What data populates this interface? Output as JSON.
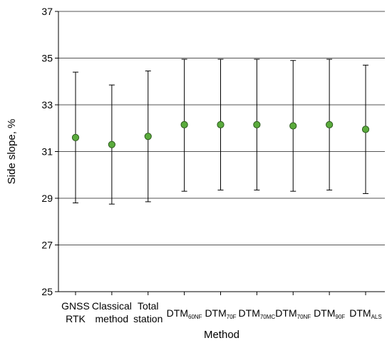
{
  "chart_data": {
    "type": "scatter",
    "subtype": "errorbar",
    "title": "",
    "xlabel": "Method",
    "ylabel": "Side slope, %",
    "ylim": [
      25,
      37
    ],
    "yticks": [
      25,
      27,
      29,
      31,
      33,
      35,
      37
    ],
    "grid": "horizontal",
    "marker_color": "#5aab3c",
    "marker_edge_color": "#2d5a1e",
    "categories": [
      {
        "lines": [
          "GNSS",
          "RTK"
        ]
      },
      {
        "lines": [
          "Classical",
          "method"
        ]
      },
      {
        "lines": [
          "Total",
          "station"
        ]
      },
      {
        "base": "DTM",
        "sub": "60NF"
      },
      {
        "base": "DTM",
        "sub": "70F"
      },
      {
        "base": "DTM",
        "sub": "70MC"
      },
      {
        "base": "DTM",
        "sub": "70NF"
      },
      {
        "base": "DTM",
        "sub": "90F"
      },
      {
        "base": "DTM",
        "sub": "ALS"
      }
    ],
    "values": [
      31.6,
      31.3,
      31.65,
      32.15,
      32.15,
      32.15,
      32.1,
      32.15,
      31.95
    ],
    "err_low": [
      28.8,
      28.75,
      28.85,
      29.3,
      29.35,
      29.35,
      29.3,
      29.35,
      29.2
    ],
    "err_high": [
      34.4,
      33.85,
      34.45,
      34.95,
      34.95,
      34.95,
      34.9,
      34.95,
      34.7
    ]
  }
}
